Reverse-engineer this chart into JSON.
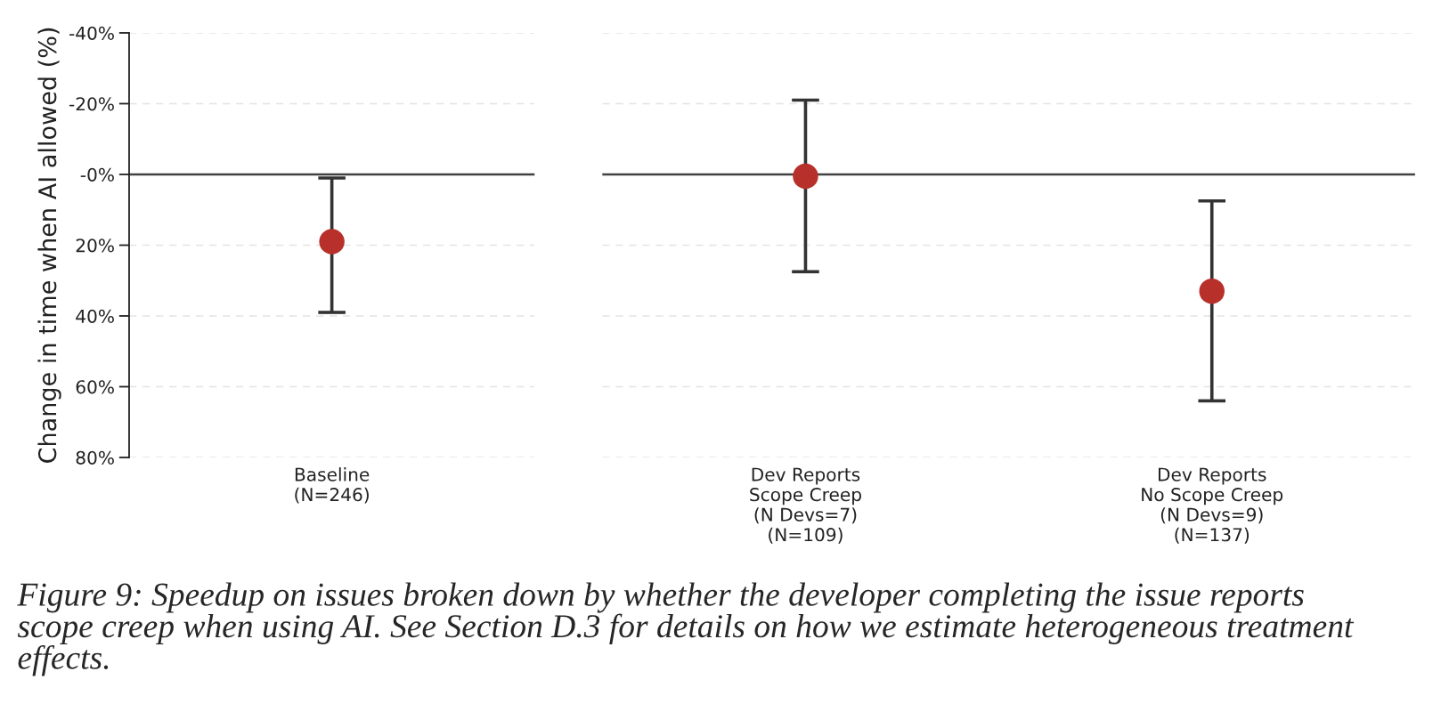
{
  "chart_data": [
    {
      "type": "scatter",
      "categories": [
        "Baseline\n(N=246)"
      ],
      "values": [
        19
      ],
      "errors": [
        [
          1,
          39
        ]
      ],
      "color": "#b8302a",
      "marker": "circle",
      "ylim": [
        80,
        -40
      ],
      "yticks": [
        {
          "value": -40,
          "label": "-40%"
        },
        {
          "value": -20,
          "label": "-20%"
        },
        {
          "value": 0,
          "label": "-0%"
        },
        {
          "value": 20,
          "label": "20%"
        },
        {
          "value": 40,
          "label": "40%"
        },
        {
          "value": 60,
          "label": "60%"
        },
        {
          "value": 80,
          "label": "80%"
        }
      ],
      "grid": "y",
      "ref_lines": [
        {
          "axis": "y",
          "value": 0,
          "color": "#404040"
        }
      ],
      "ylabel": "Change in time when AI allowed (%)",
      "annotations": [
        "Figure 9: Speedup on issues broken down by whether the developer completing the issue reports\nscope creep when using AI. See Section D.3 for details on how we estimate heterogeneous treatment\neffects."
      ]
    },
    {
      "type": "scatter",
      "categories": [
        "Dev Reports\nScope Creep\n(N Devs=7)\n(N=109)",
        "Dev Reports\nNo Scope Creep\n(N Devs=9)\n(N=137)"
      ],
      "values": [
        0.5,
        33
      ],
      "errors": [
        [
          -21,
          27.5
        ],
        [
          7.5,
          64
        ]
      ],
      "color": "#b8302a",
      "marker": "circle",
      "ylim": [
        80,
        -40
      ],
      "yticks": [
        -40,
        -20,
        0,
        20,
        40,
        60,
        80
      ],
      "grid": "y",
      "ref_lines": [
        {
          "axis": "y",
          "value": 0,
          "color": "#404040"
        }
      ],
      "tick_labels": "x"
    }
  ]
}
